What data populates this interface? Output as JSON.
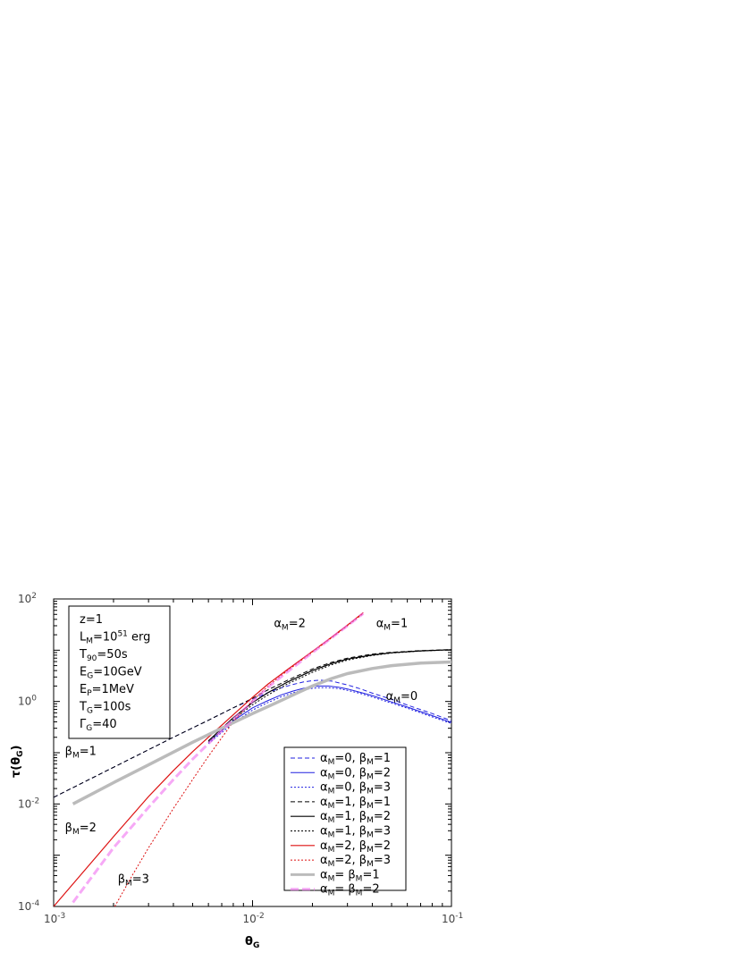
{
  "chart_data": {
    "type": "line",
    "xscale": "log",
    "yscale": "log",
    "xlim": [
      0.001,
      0.1
    ],
    "ylim": [
      0.0001,
      100
    ],
    "xlabel": "θ_G",
    "ylabel": "τ(θ_G)",
    "xlabel_parts": {
      "main": "θ",
      "sub": "G"
    },
    "ylabel_parts": {
      "pre": "τ(θ",
      "sub": "G",
      "post": ")"
    },
    "x_ticks": [
      {
        "value": 0.001,
        "base": "10",
        "exp": "-3"
      },
      {
        "value": 0.01,
        "base": "10",
        "exp": "-2"
      },
      {
        "value": 0.1,
        "base": "10",
        "exp": "-1"
      }
    ],
    "y_ticks": [
      {
        "value": 0.0001,
        "base": "10",
        "exp": "-4"
      },
      {
        "value": 0.01,
        "base": "10",
        "exp": "-2"
      },
      {
        "value": 1,
        "base": "10",
        "exp": "0"
      },
      {
        "value": 100,
        "base": "10",
        "exp": "2"
      }
    ],
    "info_box": [
      {
        "text": "z=1"
      },
      {
        "pre": "L",
        "sub": "M",
        "mid": "=10",
        "sup": "51",
        "post": " erg"
      },
      {
        "pre": "T",
        "sub": "90",
        "post": "=50s"
      },
      {
        "pre": "E",
        "sub": "G",
        "post": "=10GeV"
      },
      {
        "pre": "E",
        "sub": "P",
        "post": "=1MeV"
      },
      {
        "pre": "T",
        "sub": "G",
        "post": "=100s"
      },
      {
        "pre": "Γ",
        "sub": "G",
        "post": "=40"
      }
    ],
    "annotations": [
      {
        "id": "alpha-m-2",
        "pre": "α",
        "sub": "M",
        "post": "=2",
        "at": [
          0.0128,
          28
        ]
      },
      {
        "id": "alpha-m-1",
        "pre": "α",
        "sub": "M",
        "post": "=1",
        "at": [
          0.0418,
          28
        ]
      },
      {
        "id": "alpha-m-0",
        "pre": "α",
        "sub": "M",
        "post": "=0",
        "at": [
          0.0468,
          1.08
        ]
      },
      {
        "id": "beta-m-1",
        "pre": "β",
        "sub": "M",
        "post": "=1",
        "at": [
          0.00114,
          0.09
        ]
      },
      {
        "id": "beta-m-2",
        "pre": "β",
        "sub": "M",
        "post": "=2",
        "at": [
          0.00114,
          0.0029
        ]
      },
      {
        "id": "beta-m-3",
        "pre": "β",
        "sub": "M",
        "post": "=3",
        "at": [
          0.0021,
          0.00029
        ]
      }
    ],
    "series": [
      {
        "name": "αM=0, βM=1",
        "legend": {
          "a": "0",
          "b": "1"
        },
        "color": "#2020e0",
        "width": 1,
        "dash": "5,3",
        "x": [
          0.001,
          0.002,
          0.004,
          0.006,
          0.008,
          0.01,
          0.012,
          0.014,
          0.016,
          0.018,
          0.02,
          0.022,
          0.025,
          0.03,
          0.035,
          0.04,
          0.05,
          0.06,
          0.08,
          0.1
        ],
        "y": [
          0.0135,
          0.052,
          0.2,
          0.43,
          0.75,
          1.1,
          1.5,
          1.85,
          2.15,
          2.4,
          2.55,
          2.6,
          2.5,
          2.1,
          1.75,
          1.45,
          1.1,
          0.85,
          0.58,
          0.42
        ]
      },
      {
        "name": "αM=0, βM=2",
        "legend": {
          "a": "0",
          "b": "2"
        },
        "color": "#2020e0",
        "width": 1,
        "dash": "",
        "x": [
          0.006,
          0.008,
          0.01,
          0.012,
          0.014,
          0.016,
          0.018,
          0.02,
          0.022,
          0.024,
          0.027,
          0.03,
          0.035,
          0.04,
          0.05,
          0.06,
          0.08,
          0.1
        ],
        "y": [
          0.16,
          0.42,
          0.75,
          1.05,
          1.35,
          1.6,
          1.8,
          1.95,
          2.0,
          2.0,
          1.9,
          1.75,
          1.5,
          1.3,
          0.98,
          0.78,
          0.53,
          0.39
        ]
      },
      {
        "name": "αM=0, βM=3",
        "legend": {
          "a": "0",
          "b": "3"
        },
        "color": "#2020e0",
        "width": 1,
        "dash": "2,2",
        "x": [
          0.006,
          0.008,
          0.01,
          0.012,
          0.014,
          0.016,
          0.018,
          0.02,
          0.022,
          0.024,
          0.027,
          0.03,
          0.035,
          0.04,
          0.05,
          0.06,
          0.08,
          0.1
        ],
        "y": [
          0.15,
          0.38,
          0.68,
          0.96,
          1.24,
          1.48,
          1.68,
          1.8,
          1.85,
          1.85,
          1.78,
          1.65,
          1.42,
          1.22,
          0.93,
          0.74,
          0.5,
          0.37
        ]
      },
      {
        "name": "αM=1, βM=1",
        "legend": {
          "a": "1",
          "b": "1"
        },
        "color": "#000000",
        "width": 1,
        "dash": "5,3",
        "x": [
          0.001,
          0.002,
          0.004,
          0.006,
          0.008,
          0.01,
          0.012,
          0.015,
          0.02,
          0.025,
          0.03,
          0.04,
          0.05,
          0.07,
          0.1
        ],
        "y": [
          0.0135,
          0.052,
          0.2,
          0.43,
          0.75,
          1.15,
          1.7,
          2.6,
          4.3,
          5.8,
          7.0,
          8.4,
          9.1,
          9.8,
          10.3
        ]
      },
      {
        "name": "αM=1, βM=2",
        "legend": {
          "a": "1",
          "b": "2"
        },
        "color": "#000000",
        "width": 1.2,
        "dash": "",
        "x": [
          0.006,
          0.008,
          0.01,
          0.012,
          0.015,
          0.02,
          0.025,
          0.03,
          0.04,
          0.05,
          0.07,
          0.1
        ],
        "y": [
          0.17,
          0.48,
          0.95,
          1.5,
          2.4,
          4.0,
          5.5,
          6.7,
          8.1,
          8.9,
          9.7,
          10.2
        ]
      },
      {
        "name": "αM=1, βM=3",
        "legend": {
          "a": "1",
          "b": "3"
        },
        "color": "#000000",
        "width": 1,
        "dash": "2,2",
        "x": [
          0.006,
          0.008,
          0.01,
          0.012,
          0.015,
          0.02,
          0.025,
          0.03,
          0.04,
          0.05,
          0.07,
          0.1
        ],
        "y": [
          0.16,
          0.44,
          0.86,
          1.35,
          2.2,
          3.7,
          5.2,
          6.4,
          7.9,
          8.8,
          9.6,
          10.2
        ]
      },
      {
        "name": "αM=2, βM=2",
        "legend": {
          "a": "2",
          "b": "2"
        },
        "color": "#dd1111",
        "width": 1.2,
        "dash": "",
        "x": [
          0.001,
          0.002,
          0.003,
          0.004,
          0.005,
          0.006,
          0.008,
          0.01,
          0.012,
          0.015,
          0.02,
          0.025,
          0.03,
          0.036
        ],
        "y": [
          0.0001,
          0.0023,
          0.014,
          0.045,
          0.105,
          0.2,
          0.55,
          1.2,
          2.2,
          4.2,
          9.5,
          18,
          31,
          54
        ]
      },
      {
        "name": "αM=2, βM=3",
        "legend": {
          "a": "2",
          "b": "3"
        },
        "color": "#dd1111",
        "width": 1,
        "dash": "2,2",
        "x": [
          0.00203,
          0.0025,
          0.003,
          0.004,
          0.005,
          0.006,
          0.008,
          0.01,
          0.012,
          0.015,
          0.02,
          0.025,
          0.03,
          0.036
        ],
        "y": [
          0.0001,
          0.00042,
          0.0014,
          0.0082,
          0.03,
          0.085,
          0.4,
          1.05,
          2.0,
          4.0,
          9.2,
          17.5,
          30,
          52
        ]
      },
      {
        "name": "αM= βM=1",
        "legend_text": {
          "pre": "α",
          "sub": "M",
          "post": "= β",
          "sub2": "M",
          "post2": "=1"
        },
        "color": "#bbbbbb",
        "width": 3.5,
        "dash": "",
        "x": [
          0.00125,
          0.002,
          0.003,
          0.005,
          0.007,
          0.01,
          0.013,
          0.017,
          0.02,
          0.025,
          0.03,
          0.04,
          0.05,
          0.07,
          0.1
        ],
        "y": [
          0.01,
          0.026,
          0.058,
          0.16,
          0.3,
          0.58,
          0.92,
          1.5,
          2.0,
          2.8,
          3.5,
          4.4,
          5.0,
          5.6,
          5.9
        ]
      },
      {
        "name": "αM= βM=2",
        "legend_text": {
          "pre": "α",
          "sub": "M",
          "post": "= β",
          "sub2": "M",
          "post2": "=2"
        },
        "color": "#f070f0",
        "width": 3,
        "dash": "9,4",
        "opacity": 0.6,
        "x": [
          0.00125,
          0.002,
          0.003,
          0.004,
          0.005,
          0.006,
          0.008,
          0.01,
          0.012,
          0.015,
          0.02,
          0.025,
          0.03,
          0.036
        ],
        "y": [
          0.00012,
          0.0014,
          0.0086,
          0.03,
          0.075,
          0.15,
          0.45,
          1.0,
          1.9,
          3.8,
          9.0,
          17.5,
          30,
          52
        ]
      }
    ]
  }
}
